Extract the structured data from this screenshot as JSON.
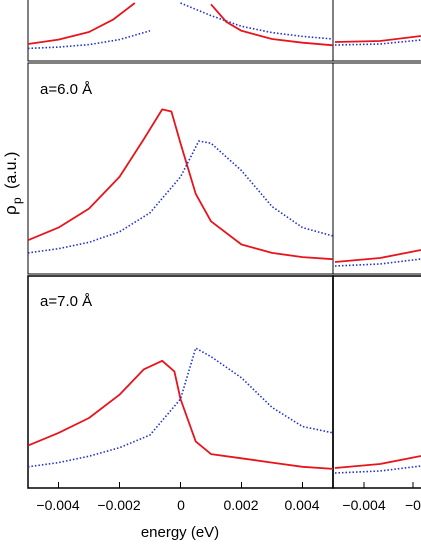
{
  "chart_data": [
    {
      "type": "line",
      "panel": "top-left (cropped)",
      "annotation": "",
      "xlim": [
        -0.005,
        0.005
      ],
      "series": [
        {
          "color": "#e8141c",
          "style": "solid",
          "x": [
            -0.005,
            -0.004,
            -0.003,
            -0.0022,
            -0.0015
          ],
          "y": [
            0.27,
            0.34,
            0.46,
            0.66,
            0.92
          ]
        },
        {
          "color": "#1f2fd6",
          "style": "dotted",
          "x": [
            0.0,
            0.0005,
            0.001,
            0.002,
            0.003,
            0.004,
            0.005
          ],
          "y": [
            0.92,
            0.82,
            0.72,
            0.55,
            0.45,
            0.39,
            0.35
          ]
        },
        {
          "color": "#e8141c",
          "style": "solid",
          "x": [
            0.001,
            0.0015,
            0.002,
            0.003,
            0.004,
            0.005
          ],
          "y": [
            0.9,
            0.62,
            0.48,
            0.35,
            0.29,
            0.25
          ]
        },
        {
          "color": "#1f2fd6",
          "style": "dotted",
          "x": [
            -0.005,
            -0.004,
            -0.003,
            -0.002,
            -0.001
          ],
          "y": [
            0.2,
            0.22,
            0.26,
            0.34,
            0.48
          ]
        }
      ]
    },
    {
      "type": "line",
      "panel": "middle-left",
      "annotation": "a=6.0 Å",
      "xlim": [
        -0.005,
        0.005
      ],
      "series": [
        {
          "color": "#e8141c",
          "style": "solid",
          "x": [
            -0.005,
            -0.004,
            -0.003,
            -0.002,
            -0.0012,
            -0.0006,
            -0.0003,
            0.0,
            0.0005,
            0.001,
            0.002,
            0.003,
            0.004,
            0.005
          ],
          "y": [
            0.16,
            0.22,
            0.31,
            0.46,
            0.64,
            0.78,
            0.77,
            0.62,
            0.38,
            0.25,
            0.14,
            0.1,
            0.08,
            0.07
          ]
        },
        {
          "color": "#1f2fd6",
          "style": "dotted",
          "x": [
            -0.005,
            -0.004,
            -0.003,
            -0.002,
            -0.001,
            0.0,
            0.0006,
            0.001,
            0.002,
            0.003,
            0.004,
            0.005
          ],
          "y": [
            0.1,
            0.12,
            0.15,
            0.2,
            0.29,
            0.46,
            0.63,
            0.62,
            0.49,
            0.32,
            0.22,
            0.18
          ]
        }
      ]
    },
    {
      "type": "line",
      "panel": "bottom-left",
      "annotation": "a=7.0 Å",
      "xlim": [
        -0.005,
        0.005
      ],
      "xticks": [
        -0.004,
        -0.002,
        0,
        0.002,
        0.004
      ],
      "xticklabels": [
        "−0.004",
        "−0.002",
        "0",
        "0.002",
        "0.004"
      ],
      "xlabel": "energy (eV)",
      "series": [
        {
          "color": "#e8141c",
          "style": "solid",
          "x": [
            -0.005,
            -0.004,
            -0.003,
            -0.002,
            -0.0012,
            -0.0006,
            -0.0002,
            0.0,
            0.0005,
            0.001,
            0.002,
            0.003,
            0.004,
            0.005
          ],
          "y": [
            0.2,
            0.26,
            0.33,
            0.44,
            0.56,
            0.6,
            0.55,
            0.42,
            0.22,
            0.16,
            0.14,
            0.12,
            0.1,
            0.09
          ]
        },
        {
          "color": "#1f2fd6",
          "style": "dotted",
          "x": [
            -0.005,
            -0.004,
            -0.003,
            -0.002,
            -0.001,
            0.0,
            0.0005,
            0.001,
            0.002,
            0.003,
            0.004,
            0.005
          ],
          "y": [
            0.1,
            0.12,
            0.15,
            0.19,
            0.25,
            0.42,
            0.66,
            0.62,
            0.52,
            0.38,
            0.29,
            0.26
          ]
        }
      ]
    },
    {
      "type": "line",
      "panel": "right column (cropped)",
      "xticklabels": [
        "−0.004",
        "−0"
      ],
      "series": []
    }
  ],
  "figure": {
    "ylabel_main": "ρ",
    "ylabel_sub": "p",
    "ylabel_unit": "(a.u.)"
  }
}
